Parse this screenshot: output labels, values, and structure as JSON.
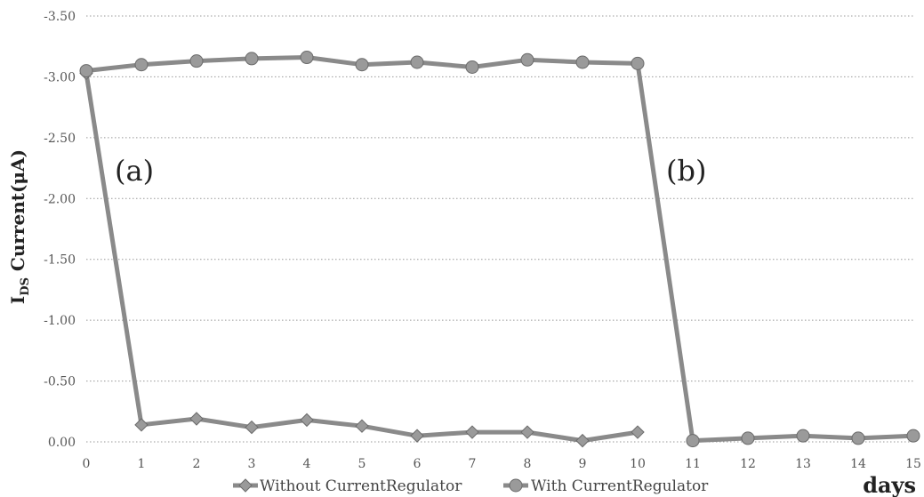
{
  "chart_data": {
    "type": "line",
    "ylabel": "I_DS Current(μA)",
    "ylabel_main": "I",
    "ylabel_sub": "DS",
    "ylabel_rest": " Current(μA)",
    "xlabel": "days",
    "x": [
      0,
      1,
      2,
      3,
      4,
      5,
      6,
      7,
      8,
      9,
      10,
      11,
      12,
      13,
      14,
      15
    ],
    "xlim": [
      0,
      15
    ],
    "ylim": [
      -3.5,
      0.0
    ],
    "y_axis_inverted": true,
    "y_ticks": [
      "-3.50",
      "-3.00",
      "-2.50",
      "-2.00",
      "-1.50",
      "-1.00",
      "-0.50",
      "0.00"
    ],
    "y_tick_values": [
      -3.5,
      -3.0,
      -2.5,
      -2.0,
      -1.5,
      -1.0,
      -0.5,
      0.0
    ],
    "x_ticks": [
      "0",
      "1",
      "2",
      "3",
      "4",
      "5",
      "6",
      "7",
      "8",
      "9",
      "10",
      "11",
      "12",
      "13",
      "14",
      "15"
    ],
    "grid": "horizontal dotted",
    "legend_position": "bottom",
    "series": [
      {
        "name": "Without CurrentRegulator",
        "marker": "diamond",
        "color": "#8a8a8a",
        "x": [
          0,
          1,
          2,
          3,
          4,
          5,
          6,
          7,
          8,
          9,
          10
        ],
        "y": [
          -3.03,
          -0.14,
          -0.19,
          -0.12,
          -0.18,
          -0.13,
          -0.05,
          -0.08,
          -0.08,
          -0.01,
          -0.08
        ]
      },
      {
        "name": "With CurrentRegulator",
        "marker": "circle",
        "color": "#8a8a8a",
        "x": [
          0,
          1,
          2,
          3,
          4,
          5,
          6,
          7,
          8,
          9,
          10,
          11,
          12,
          13,
          14,
          15
        ],
        "y": [
          -3.05,
          -3.1,
          -3.13,
          -3.15,
          -3.16,
          -3.1,
          -3.12,
          -3.08,
          -3.14,
          -3.12,
          -3.11,
          -0.01,
          -0.03,
          -0.05,
          -0.03,
          -0.05
        ]
      }
    ],
    "annotations": [
      {
        "text": "(a)",
        "x": 1,
        "y": -2.15
      },
      {
        "text": "(b)",
        "x": 11,
        "y": -2.15
      }
    ]
  }
}
